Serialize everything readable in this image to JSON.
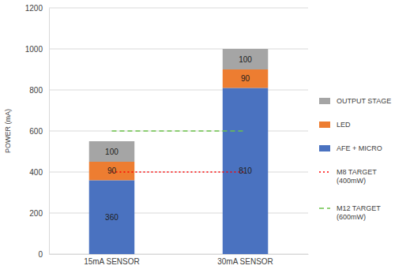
{
  "chart_data": {
    "type": "bar",
    "stacked": true,
    "data_labels": true,
    "grid": true,
    "legend": "right",
    "y_label": "POWER (mA)",
    "categories": [
      "15mA SENSOR",
      "30mA SENSOR"
    ],
    "ylim": [
      0,
      1200
    ],
    "yticks": [
      0,
      200,
      400,
      600,
      800,
      1000,
      1200
    ],
    "series": [
      {
        "name": "AFE + MICRO",
        "color": "#4a72c0",
        "values": [
          360,
          810
        ]
      },
      {
        "name": "LED",
        "color": "#ed7d31",
        "values": [
          90,
          90
        ]
      },
      {
        "name": "OUTPUT STAGE",
        "color": "#a5a5a5",
        "values": [
          100,
          100
        ]
      },
      {
        "name": "M8 TARGET (400mW)",
        "type": "line",
        "color": "#ff0000",
        "line_style": "dotted",
        "values": [
          400,
          400
        ]
      },
      {
        "name": "M12 TARGET (600mW)",
        "type": "line",
        "color": "#6cc24a",
        "line_style": "dashed",
        "values": [
          600,
          600
        ]
      }
    ]
  }
}
